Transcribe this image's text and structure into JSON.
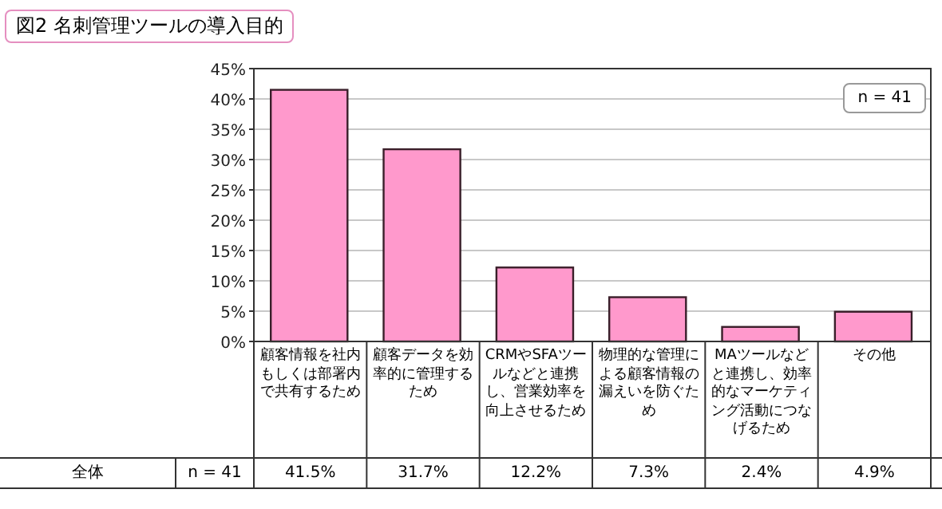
{
  "chart_data": {
    "type": "bar",
    "title": "図2 名刺管理ツールの導入目的",
    "categories": [
      "顧客情報を社内もしくは部署内で共有するため",
      "顧客データを効率的に管理するため",
      "CRMやSFAツールなどと連携し、営業効率を向上させるため",
      "物理的な管理による顧客情報の漏えいを防ぐため",
      "MAツールなどと連携し、効率的なマーケティング活動につなげるため",
      "その他"
    ],
    "values": [
      41.5,
      31.7,
      12.2,
      7.3,
      2.4,
      4.9
    ],
    "value_labels": [
      "41.5%",
      "31.7%",
      "12.2%",
      "7.3%",
      "2.4%",
      "4.9%"
    ],
    "color": "#ff99cc",
    "ylim": [
      0,
      45
    ],
    "yticks": [
      {
        "value": 0,
        "label": "0%"
      },
      {
        "value": 5,
        "label": "5%"
      },
      {
        "value": 10,
        "label": "10%"
      },
      {
        "value": 15,
        "label": "15%"
      },
      {
        "value": 20,
        "label": "20%"
      },
      {
        "value": 25,
        "label": "25%"
      },
      {
        "value": 30,
        "label": "30%"
      },
      {
        "value": 35,
        "label": "35%"
      },
      {
        "value": 40,
        "label": "40%"
      },
      {
        "value": 45,
        "label": "45%"
      }
    ],
    "grid": "y",
    "annotations": [
      "n = 41",
      "全体",
      "n = 41"
    ]
  }
}
